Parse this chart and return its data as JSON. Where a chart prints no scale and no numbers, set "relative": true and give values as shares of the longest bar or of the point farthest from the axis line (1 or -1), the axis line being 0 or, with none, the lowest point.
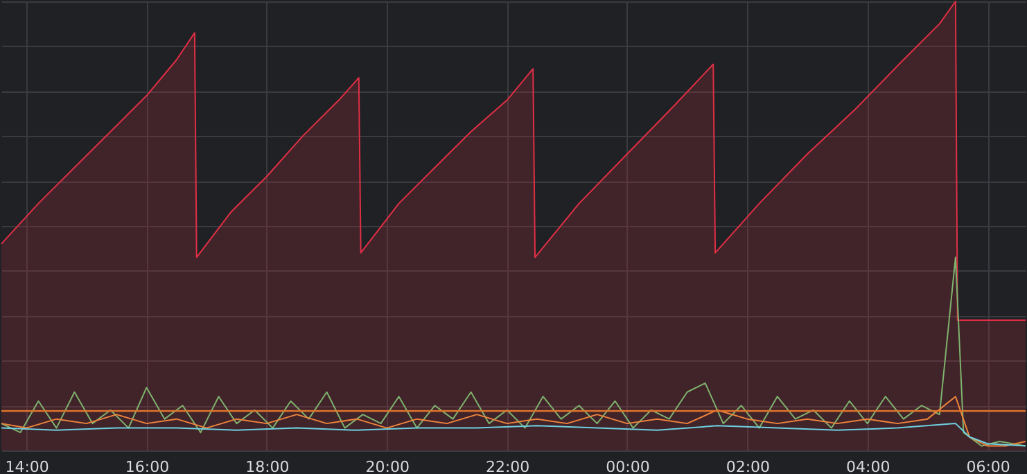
{
  "chart_data": {
    "type": "area",
    "relative": true,
    "grid": true,
    "xlim": [
      "2000-01-01T13:35",
      "2000-01-02T06:38"
    ],
    "xticks": [
      {
        "value": "2000-01-01T14:00",
        "label": "14:00"
      },
      {
        "value": "2000-01-01T16:00",
        "label": "16:00"
      },
      {
        "value": "2000-01-01T18:00",
        "label": "18:00"
      },
      {
        "value": "2000-01-01T20:00",
        "label": "20:00"
      },
      {
        "value": "2000-01-01T22:00",
        "label": "22:00"
      },
      {
        "value": "2000-01-02T00:00",
        "label": "00:00"
      },
      {
        "value": "2000-01-02T02:00",
        "label": "02:00"
      },
      {
        "value": "2000-01-02T04:00",
        "label": "04:00"
      },
      {
        "value": "2000-01-02T06:00",
        "label": "06:00"
      }
    ],
    "ref_lines": [
      {
        "axis": "y",
        "value": 0.088,
        "color": "#e0752d"
      }
    ],
    "series": [
      {
        "color": "#e02f44",
        "x": [
          "2000-01-01T13:35",
          "2000-01-01T14:12",
          "2000-01-01T14:48",
          "2000-01-01T15:24",
          "2000-01-01T16:00",
          "2000-01-01T16:30",
          "2000-01-01T16:48",
          "2000-01-01T16:50",
          "2000-01-01T17:24",
          "2000-01-01T18:00",
          "2000-01-01T18:36",
          "2000-01-01T19:12",
          "2000-01-01T19:32",
          "2000-01-01T19:34",
          "2000-01-01T20:12",
          "2000-01-01T20:48",
          "2000-01-01T21:24",
          "2000-01-01T22:00",
          "2000-01-01T22:26",
          "2000-01-01T22:28",
          "2000-01-01T23:12",
          "2000-01-02T00:00",
          "2000-01-02T00:48",
          "2000-01-02T01:26",
          "2000-01-02T01:28",
          "2000-01-02T02:12",
          "2000-01-02T03:00",
          "2000-01-02T03:48",
          "2000-01-02T04:36",
          "2000-01-02T05:12",
          "2000-01-02T05:28",
          "2000-01-02T05:30",
          "2000-01-02T06:38"
        ],
        "values": [
          0.46,
          0.55,
          0.63,
          0.71,
          0.79,
          0.87,
          0.93,
          0.43,
          0.53,
          0.61,
          0.7,
          0.78,
          0.83,
          0.44,
          0.55,
          0.63,
          0.71,
          0.78,
          0.85,
          0.43,
          0.55,
          0.66,
          0.77,
          0.86,
          0.44,
          0.55,
          0.66,
          0.76,
          0.87,
          0.95,
          1.0,
          0.29,
          0.29
        ]
      },
      {
        "type": "line",
        "color": "#7eb26d",
        "x": [
          "2000-01-01T13:35",
          "2000-01-01T13:54",
          "2000-01-01T14:12",
          "2000-01-01T14:30",
          "2000-01-01T14:48",
          "2000-01-01T15:06",
          "2000-01-01T15:24",
          "2000-01-01T15:42",
          "2000-01-01T16:00",
          "2000-01-01T16:18",
          "2000-01-01T16:36",
          "2000-01-01T16:54",
          "2000-01-01T17:12",
          "2000-01-01T17:30",
          "2000-01-01T17:48",
          "2000-01-01T18:06",
          "2000-01-01T18:24",
          "2000-01-01T18:42",
          "2000-01-01T19:00",
          "2000-01-01T19:18",
          "2000-01-01T19:36",
          "2000-01-01T19:54",
          "2000-01-01T20:12",
          "2000-01-01T20:30",
          "2000-01-01T20:48",
          "2000-01-01T21:06",
          "2000-01-01T21:24",
          "2000-01-01T21:42",
          "2000-01-01T22:00",
          "2000-01-01T22:18",
          "2000-01-01T22:36",
          "2000-01-01T22:54",
          "2000-01-01T23:12",
          "2000-01-01T23:30",
          "2000-01-01T23:48",
          "2000-01-02T00:06",
          "2000-01-02T00:24",
          "2000-01-02T00:42",
          "2000-01-02T01:00",
          "2000-01-02T01:18",
          "2000-01-02T01:36",
          "2000-01-02T01:54",
          "2000-01-02T02:12",
          "2000-01-02T02:30",
          "2000-01-02T02:48",
          "2000-01-02T03:06",
          "2000-01-02T03:24",
          "2000-01-02T03:42",
          "2000-01-02T04:00",
          "2000-01-02T04:18",
          "2000-01-02T04:36",
          "2000-01-02T04:54",
          "2000-01-02T05:12",
          "2000-01-02T05:28",
          "2000-01-02T05:36",
          "2000-01-02T05:54",
          "2000-01-02T06:12",
          "2000-01-02T06:38"
        ],
        "values": [
          0.06,
          0.04,
          0.11,
          0.05,
          0.13,
          0.06,
          0.09,
          0.05,
          0.14,
          0.07,
          0.1,
          0.04,
          0.12,
          0.06,
          0.09,
          0.05,
          0.11,
          0.07,
          0.13,
          0.05,
          0.08,
          0.06,
          0.12,
          0.05,
          0.1,
          0.07,
          0.13,
          0.06,
          0.09,
          0.05,
          0.12,
          0.07,
          0.1,
          0.06,
          0.11,
          0.05,
          0.09,
          0.07,
          0.13,
          0.15,
          0.06,
          0.1,
          0.05,
          0.12,
          0.07,
          0.09,
          0.05,
          0.11,
          0.06,
          0.12,
          0.07,
          0.1,
          0.08,
          0.43,
          0.04,
          0.01,
          0.02,
          0.01
        ]
      },
      {
        "type": "line",
        "color": "#ef843c",
        "x": [
          "2000-01-01T13:35",
          "2000-01-01T14:00",
          "2000-01-01T14:30",
          "2000-01-01T15:00",
          "2000-01-01T15:30",
          "2000-01-01T16:00",
          "2000-01-01T16:30",
          "2000-01-01T17:00",
          "2000-01-01T17:30",
          "2000-01-01T18:00",
          "2000-01-01T18:30",
          "2000-01-01T19:00",
          "2000-01-01T19:30",
          "2000-01-01T20:00",
          "2000-01-01T20:30",
          "2000-01-01T21:00",
          "2000-01-01T21:30",
          "2000-01-01T22:00",
          "2000-01-01T22:30",
          "2000-01-01T23:00",
          "2000-01-01T23:30",
          "2000-01-02T00:00",
          "2000-01-02T00:30",
          "2000-01-02T01:00",
          "2000-01-02T01:30",
          "2000-01-02T02:00",
          "2000-01-02T02:30",
          "2000-01-02T03:00",
          "2000-01-02T03:30",
          "2000-01-02T04:00",
          "2000-01-02T04:30",
          "2000-01-02T05:00",
          "2000-01-02T05:28",
          "2000-01-02T05:42",
          "2000-01-02T06:00",
          "2000-01-02T06:18",
          "2000-01-02T06:38"
        ],
        "values": [
          0.06,
          0.05,
          0.07,
          0.06,
          0.08,
          0.06,
          0.07,
          0.05,
          0.07,
          0.06,
          0.08,
          0.06,
          0.07,
          0.05,
          0.07,
          0.06,
          0.08,
          0.06,
          0.07,
          0.06,
          0.08,
          0.06,
          0.07,
          0.06,
          0.09,
          0.07,
          0.06,
          0.07,
          0.06,
          0.07,
          0.06,
          0.07,
          0.12,
          0.03,
          0.01,
          0.01,
          0.02
        ]
      },
      {
        "type": "line",
        "color": "#6ed0e0",
        "x": [
          "2000-01-01T13:35",
          "2000-01-01T14:30",
          "2000-01-01T15:30",
          "2000-01-01T16:30",
          "2000-01-01T17:30",
          "2000-01-01T18:30",
          "2000-01-01T19:30",
          "2000-01-01T20:30",
          "2000-01-01T21:30",
          "2000-01-01T22:30",
          "2000-01-01T23:30",
          "2000-01-02T00:30",
          "2000-01-02T01:30",
          "2000-01-02T02:30",
          "2000-01-02T03:30",
          "2000-01-02T04:30",
          "2000-01-02T05:28",
          "2000-01-02T05:42",
          "2000-01-02T06:00",
          "2000-01-02T06:38"
        ],
        "values": [
          0.05,
          0.045,
          0.05,
          0.05,
          0.045,
          0.05,
          0.045,
          0.05,
          0.05,
          0.055,
          0.05,
          0.045,
          0.055,
          0.05,
          0.045,
          0.05,
          0.06,
          0.03,
          0.015,
          0.01
        ]
      }
    ]
  }
}
